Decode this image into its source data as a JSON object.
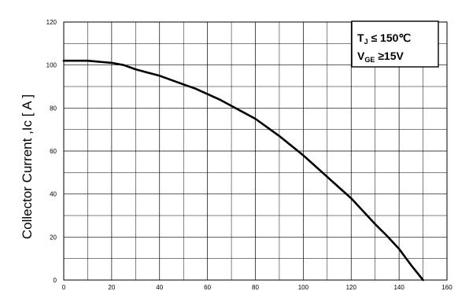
{
  "chart_data": {
    "type": "line",
    "ylabel": "Collector Current ,Ic [ A ]",
    "xlabel": "",
    "xlim": [
      0,
      160
    ],
    "ylim": [
      0,
      120
    ],
    "x_ticks": [
      "0",
      "20",
      "40",
      "60",
      "80",
      "100",
      "120",
      "140",
      "160"
    ],
    "y_ticks": [
      "0",
      "20",
      "40",
      "60",
      "80",
      "100",
      "120"
    ],
    "grid": true,
    "legend_placement": "top-right",
    "annotation": {
      "line1_main": "T",
      "line1_sub": "J",
      "line1_rest": " ≤ 150℃",
      "line2_main": "V",
      "line2_sub": "GE",
      "line2_rest": " ≥15V"
    },
    "series": [
      {
        "color": "#000000",
        "x": [
          0,
          10,
          15,
          20,
          25,
          30,
          35,
          40,
          45,
          50,
          55,
          60,
          65,
          70,
          75,
          80,
          85,
          90,
          95,
          100,
          105,
          110,
          115,
          120,
          125,
          130,
          135,
          140,
          145,
          150
        ],
        "y": [
          102,
          102,
          101.5,
          101,
          100,
          98,
          96.5,
          95,
          93,
          91,
          89,
          86.5,
          84,
          81,
          78,
          75,
          71,
          67,
          62.5,
          58,
          53,
          48,
          43,
          38,
          32,
          26,
          20.5,
          14.5,
          7,
          0
        ]
      }
    ]
  }
}
